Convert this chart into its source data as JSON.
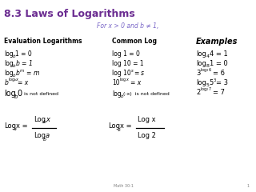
{
  "title": "8.3 Laws of Logarithms",
  "title_color": "#6B2C91",
  "subtitle": "For x > 0 and b ≠ 1,",
  "subtitle_color": "#7B68C8",
  "bg_color": "#FFFFFF",
  "footer": "Math 30-1",
  "page_num": "1"
}
